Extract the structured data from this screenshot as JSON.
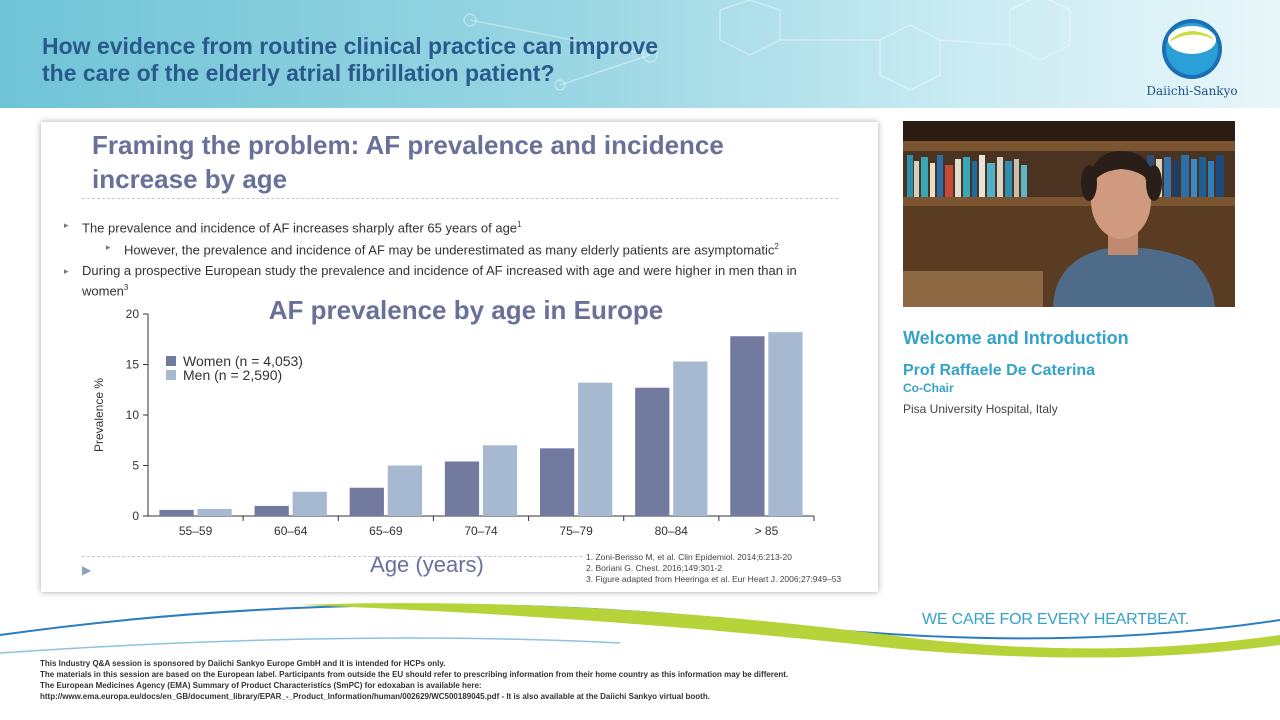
{
  "header": {
    "title_line1": "How evidence from routine clinical practice can improve",
    "title_line2": "the care of the elderly atrial fibrillation patient?",
    "logo_text": "Daiichi-Sankyo"
  },
  "slide": {
    "title_line1": "Framing the problem: AF prevalence and incidence",
    "title_line2": "increase by age",
    "bullet1": "The prevalence and incidence of AF increases sharply after 65 years of age",
    "bullet1_sup": "1",
    "bullet2": "However, the prevalence and incidence of AF may be underestimated as many elderly patients are asymptomatic",
    "bullet2_sup": "2",
    "bullet3": "During a prospective European study the prevalence and incidence of AF increased with age and were higher in men than in women",
    "bullet3_sup": "3",
    "references": [
      "1. Zoni-Berisso M, et al. Clin Epidemiol. 2014;6:213-20",
      "2. Boriani G. Chest. 2016;149:301-2",
      "3. Figure adapted from Heeringa et al. Eur Heart J. 2006;27:949–53"
    ]
  },
  "chart_data": {
    "type": "bar",
    "title": "AF prevalence by age in Europe",
    "xlabel": "Age (years)",
    "ylabel": "Prevalence %",
    "ylim": [
      0,
      20
    ],
    "yticks": [
      0,
      5,
      10,
      15,
      20
    ],
    "categories": [
      "55–59",
      "60–64",
      "65–69",
      "70–74",
      "75–79",
      "80–84",
      "> 85"
    ],
    "series": [
      {
        "name": "Women (n = 4,053)",
        "color": "#737aa0",
        "values": [
          0.6,
          1.0,
          2.8,
          5.4,
          6.7,
          12.7,
          17.8
        ]
      },
      {
        "name": "Men (n = 2,590)",
        "color": "#a7b9d0",
        "values": [
          0.7,
          2.4,
          5.0,
          7.0,
          13.2,
          15.3,
          18.2
        ]
      }
    ],
    "grid": false,
    "legend_position": "top-left"
  },
  "video": {
    "session_title": "Welcome and Introduction",
    "speaker_name": "Prof Raffaele De Caterina",
    "speaker_role": "Co-Chair",
    "speaker_affiliation": "Pisa University Hospital, Italy"
  },
  "footer": {
    "tagline": "WE CARE FOR EVERY HEARTBEAT.",
    "disclaimer": [
      "This Industry Q&A session is sponsored by Daiichi Sankyo Europe GmbH and it is intended for HCPs only.",
      "The materials in this session are based on the European label. Participants from outside the EU should refer to prescribing information from their home country as this information may be different.",
      "The European Medicines Agency (EMA) Summary of Product Characteristics (SmPC) for edoxaban is available here:",
      "http://www.ema.europa.eu/docs/en_GB/document_library/EPAR_-_Product_Information/human/002629/WC500189045.pdf - It is also available at the Daiichi Sankyo virtual booth."
    ]
  },
  "colors": {
    "header_text": "#2a5a8c",
    "slide_title": "#6a7199",
    "accent_cyan": "#35a2c9",
    "wave_green": "#b6d33a",
    "wave_blue": "#2a7fc0"
  }
}
